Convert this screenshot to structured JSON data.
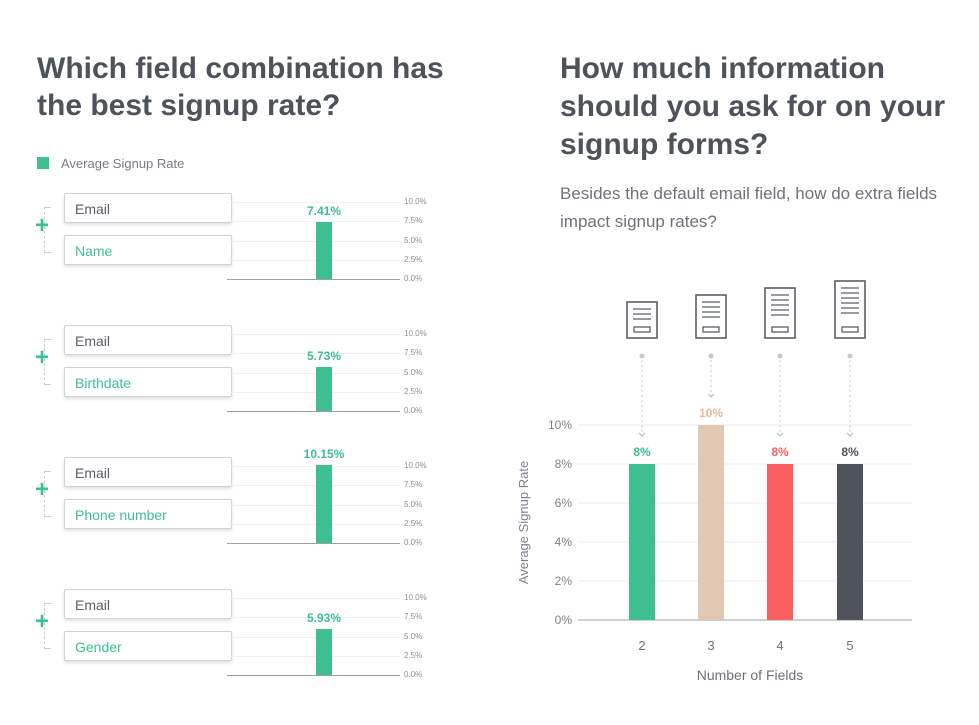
{
  "left": {
    "title": "Which field combination has the best signup rate?",
    "legend": "Average Signup Rate",
    "ticks": [
      "10.0%",
      "7.5%",
      "5.0%",
      "2.5%",
      "0.0%"
    ]
  },
  "right": {
    "title": "How much information should you ask for on your signup forms?",
    "subtitle": "Besides the default email field, how do extra fields impact signup rates?"
  },
  "chart_data": [
    {
      "type": "bar",
      "categories": [
        "Email + Name",
        "Email + Birthdate",
        "Email + Phone number",
        "Email + Gender"
      ],
      "series": [
        {
          "name": "Average Signup Rate",
          "values": [
            7.41,
            5.73,
            10.15,
            5.93
          ]
        }
      ],
      "value_labels": [
        "7.41%",
        "5.73%",
        "10.15%",
        "5.93%"
      ],
      "fields": [
        {
          "first": "Email",
          "second": "Name"
        },
        {
          "first": "Email",
          "second": "Birthdate"
        },
        {
          "first": "Email",
          "second": "Phone number"
        },
        {
          "first": "Email",
          "second": "Gender"
        }
      ],
      "yticks": [
        "10.0%",
        "7.5%",
        "5.0%",
        "2.5%",
        "0.0%"
      ],
      "ylim": [
        0,
        10
      ],
      "color": "#3dbf8f"
    },
    {
      "type": "bar",
      "categories": [
        "2",
        "3",
        "4",
        "5"
      ],
      "values": [
        8,
        10,
        8,
        8
      ],
      "value_labels": [
        "8%",
        "10%",
        "8%",
        "8%"
      ],
      "colors": [
        "#3dbf8f",
        "#e2c8b3",
        "#f95f5f",
        "#4f535c"
      ],
      "label_colors": [
        "#3dbf8f",
        "#e8b99a",
        "#f95f5f",
        "#4f535c"
      ],
      "xlabel": "Number of Fields",
      "ylabel": "Average Signup Rate",
      "yticks": [
        "10%",
        "8%",
        "6%",
        "4%",
        "2%",
        "0%"
      ],
      "ylim": [
        0,
        10
      ],
      "icon": "form-document-icon"
    }
  ]
}
